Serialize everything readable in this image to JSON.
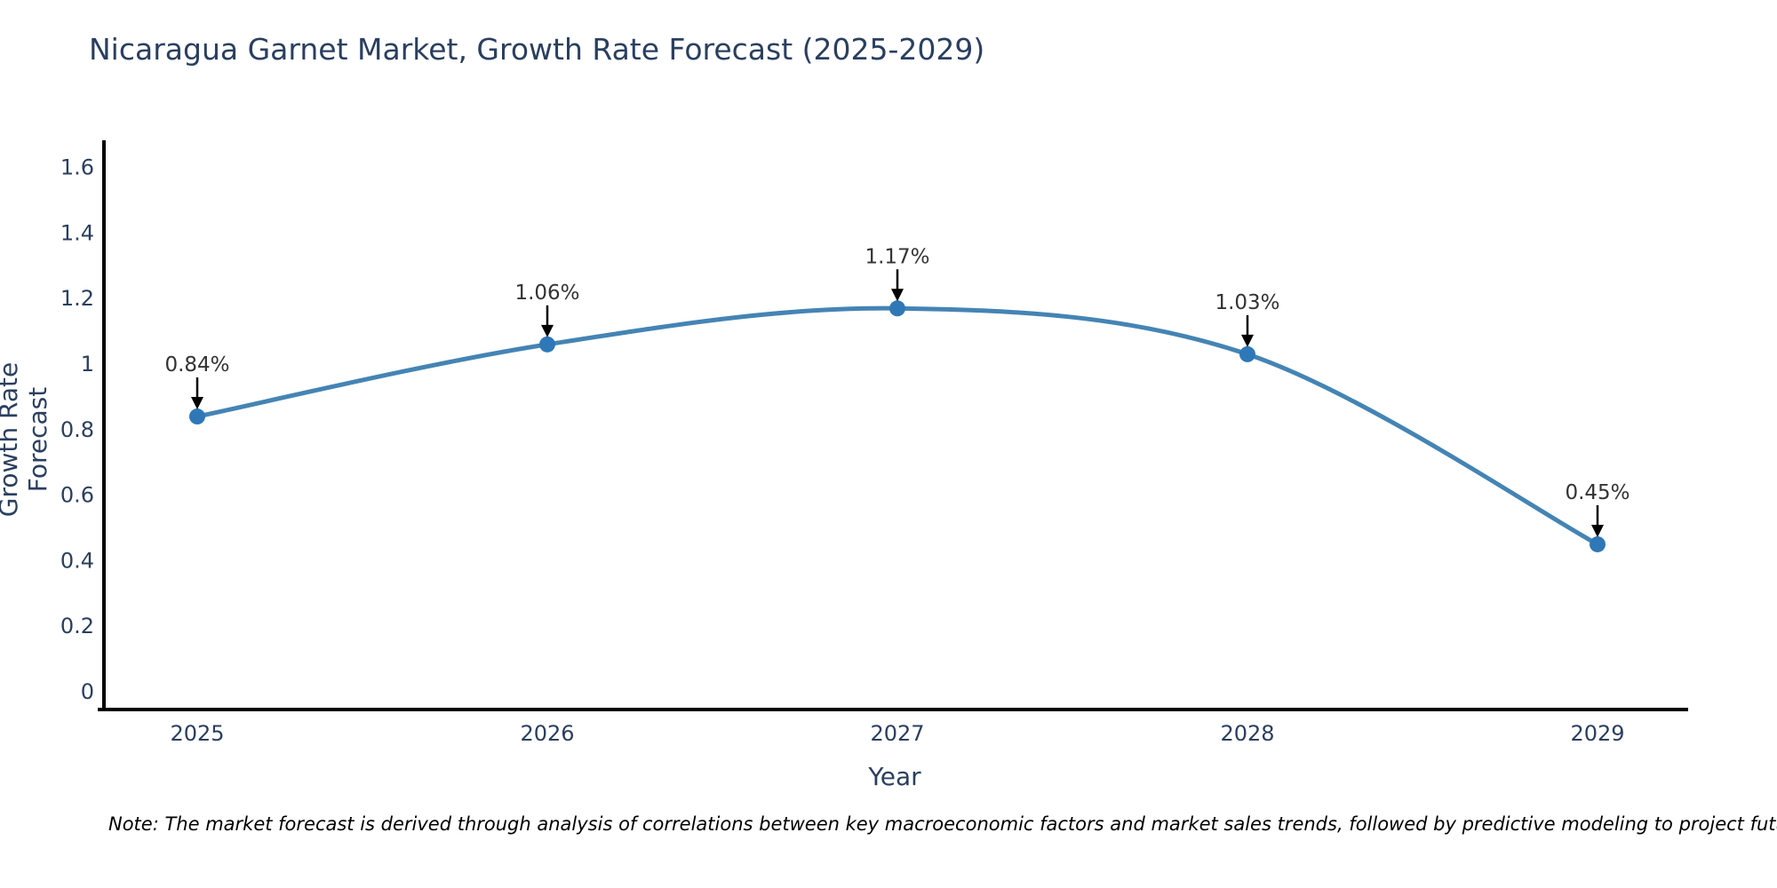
{
  "chart_data": {
    "type": "line",
    "title": "Nicaragua Garnet Market, Growth Rate Forecast (2025-2029)",
    "xlabel": "Year",
    "ylabel": "Growth Rate Forecast",
    "x": [
      "2025",
      "2026",
      "2027",
      "2028",
      "2029"
    ],
    "values": [
      0.84,
      1.06,
      1.17,
      1.03,
      0.45
    ],
    "point_labels": [
      "0.84%",
      "1.06%",
      "1.17%",
      "1.03%",
      "0.45%"
    ],
    "ytick_labels": [
      "0",
      "0.2",
      "0.4",
      "0.6",
      "0.8",
      "1",
      "1.2",
      "1.4",
      "1.6"
    ],
    "yticks": [
      0,
      0.2,
      0.4,
      0.6,
      0.8,
      1.0,
      1.2,
      1.4,
      1.6
    ],
    "ylim": [
      0,
      1.6
    ],
    "grid": false,
    "legend_position": "none",
    "line_shape": "spline",
    "colors": {
      "line": "#4484b4",
      "marker": "#2f78b8",
      "annotation_text": "#333333",
      "annotation_arrow": "#000000",
      "axis_text": "#2a3f5f",
      "axis_line": "#000000",
      "title_text": "#2a3f5f"
    }
  },
  "note": {
    "text": "Note: The market forecast is derived through analysis of correlations between key macroeconomic factors and market sales trends, followed by predictive modeling to project future sales"
  }
}
